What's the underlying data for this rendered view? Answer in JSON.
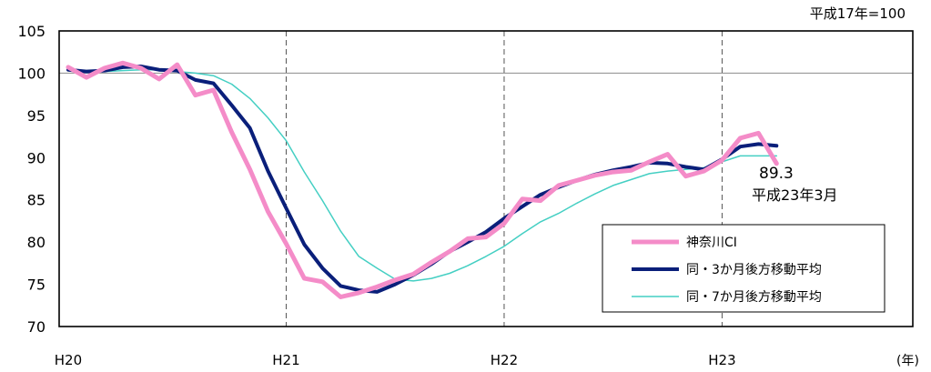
{
  "chart_data": {
    "type": "line",
    "unit_note": "平成17年=100",
    "x_unit": "(年)",
    "x_ticks": [
      "H20",
      "H21",
      "H22",
      "H23"
    ],
    "x_tick_months": [
      0,
      12,
      24,
      36
    ],
    "xlim": [
      -0.5,
      46.5
    ],
    "ylim": [
      70,
      105
    ],
    "y_ticks": [
      70,
      75,
      80,
      85,
      90,
      95,
      100,
      105
    ],
    "reference_line": 100,
    "grid": "vertical dashed at year boundaries",
    "legend_position": "lower-right",
    "annotation": {
      "value": "89.3",
      "label": "平成23年3月"
    },
    "series": [
      {
        "name": "神奈川CI",
        "color": "#f48cc8",
        "values": [
          100.7,
          99.5,
          100.6,
          101.2,
          100.6,
          99.3,
          101.0,
          97.4,
          98.0,
          93.0,
          88.6,
          83.6,
          79.8,
          75.7,
          75.3,
          73.5,
          74.0,
          74.7,
          75.5,
          76.2,
          77.6,
          78.9,
          80.4,
          80.6,
          82.2,
          85.1,
          84.9,
          86.7,
          87.3,
          87.9,
          88.3,
          88.5,
          89.5,
          90.4,
          87.8,
          88.4,
          89.7,
          92.3,
          92.9,
          89.3
        ]
      },
      {
        "name": "同・3か月後方移動平均",
        "color": "#0a1f7a",
        "values": [
          100.4,
          100.2,
          100.3,
          100.7,
          100.8,
          100.4,
          100.3,
          99.2,
          98.8,
          96.2,
          93.5,
          88.4,
          84.0,
          79.7,
          76.9,
          74.8,
          74.3,
          74.1,
          75.0,
          76.1,
          77.4,
          78.9,
          80.0,
          81.2,
          82.8,
          84.2,
          85.6,
          86.5,
          87.3,
          88.0,
          88.5,
          88.9,
          89.4,
          89.3,
          88.9,
          88.6,
          89.8,
          91.3,
          91.6,
          91.4
        ]
      },
      {
        "name": "同・7か月後方移動平均",
        "color": "#44cfc3",
        "values": [
          100.5,
          100.2,
          100.2,
          100.3,
          100.4,
          100.4,
          100.2,
          100.0,
          99.7,
          98.7,
          97.0,
          94.7,
          92.0,
          88.3,
          84.9,
          81.3,
          78.3,
          76.9,
          75.6,
          75.4,
          75.7,
          76.3,
          77.2,
          78.3,
          79.5,
          81.0,
          82.4,
          83.4,
          84.6,
          85.7,
          86.7,
          87.4,
          88.1,
          88.4,
          88.6,
          88.8,
          89.5,
          90.2,
          90.2,
          90.2
        ]
      }
    ]
  }
}
